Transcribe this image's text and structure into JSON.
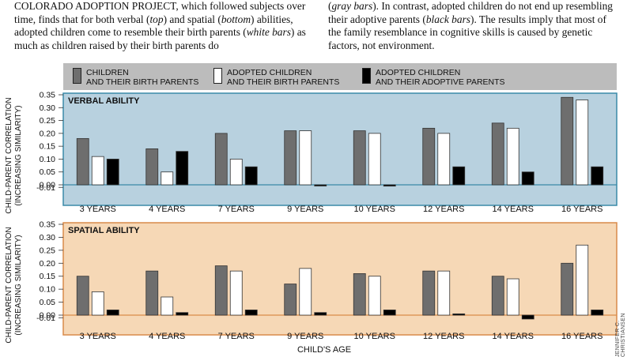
{
  "caption": {
    "left": [
      {
        "t": "COLORADO ADOPTION PROJECT, which followed subjects over time, finds that for both verbal ("
      },
      {
        "t": "top",
        "i": true
      },
      {
        "t": ") and spatial ("
      },
      {
        "t": "bottom",
        "i": true
      },
      {
        "t": ") abilities, adopted children come to resemble their birth parents ("
      },
      {
        "t": "white bars",
        "i": true
      },
      {
        "t": ") as much as children raised by their birth parents do"
      }
    ],
    "right": [
      {
        "t": "("
      },
      {
        "t": "gray bars",
        "i": true
      },
      {
        "t": "). In contrast, adopted children do not end up resembling their adoptive parents ("
      },
      {
        "t": "black bars",
        "i": true
      },
      {
        "t": "). The results imply that most of the family resemblance in cognitive skills is caused by genetic factors, not environment."
      }
    ]
  },
  "legend": [
    {
      "label": "CHILDREN\nAND THEIR BIRTH PARENTS",
      "color": "#6e6e6e"
    },
    {
      "label": "ADOPTED CHILDREN\nAND THEIR BIRTH PARENTS",
      "color": "#ffffff"
    },
    {
      "label": "ADOPTED CHILDREN\nAND THEIR ADOPTIVE PARENTS",
      "color": "#000000"
    }
  ],
  "credit": "JENNIFER C. CHRISTIANSEN",
  "xlabel": "CHILD'S AGE",
  "chart_data": [
    {
      "type": "bar",
      "title": "VERBAL ABILITY",
      "ylabel": [
        "CHILD-PARENT CORRELATION",
        "(INCREASING SIMILARITY)"
      ],
      "ylim": [
        -0.01,
        0.35
      ],
      "yticks": [
        "0.35",
        "0.30",
        "0.25",
        "0.20",
        "0.15",
        "0.10",
        "0.05",
        "0.00",
        "-0.01"
      ],
      "background": "#b8d1df",
      "border": "#3a8aa8",
      "categories": [
        "3 YEARS",
        "4 YEARS",
        "7 YEARS",
        "9 YEARS",
        "10 YEARS",
        "12 YEARS",
        "14 YEARS",
        "16 YEARS"
      ],
      "series": [
        {
          "name": "CHILDREN AND THEIR BIRTH PARENTS",
          "values": [
            0.18,
            0.14,
            0.2,
            0.21,
            0.21,
            0.22,
            0.24,
            0.34
          ]
        },
        {
          "name": "ADOPTED CHILDREN AND THEIR BIRTH PARENTS",
          "values": [
            0.11,
            0.05,
            0.1,
            0.21,
            0.2,
            0.2,
            0.22,
            0.33
          ]
        },
        {
          "name": "ADOPTED CHILDREN AND THEIR ADOPTIVE PARENTS",
          "values": [
            0.1,
            0.13,
            0.07,
            -0.002,
            -0.005,
            0.07,
            0.05,
            0.07
          ]
        }
      ]
    },
    {
      "type": "bar",
      "title": "SPATIAL ABILITY",
      "ylabel": [
        "CHILD-PARENT CORRELATION",
        "(INCREASING SIMILARITY)"
      ],
      "ylim": [
        -0.01,
        0.35
      ],
      "yticks": [
        "0.35",
        "0.30",
        "0.25",
        "0.20",
        "0.15",
        "0.10",
        "0.05",
        "0.00",
        "-0.01"
      ],
      "background": "#f6d8b6",
      "border": "#d98a4a",
      "categories": [
        "3 YEARS",
        "4 YEARS",
        "7 YEARS",
        "9 YEARS",
        "10 YEARS",
        "12 YEARS",
        "14 YEARS",
        "16 YEARS"
      ],
      "series": [
        {
          "name": "CHILDREN AND THEIR BIRTH PARENTS",
          "values": [
            0.15,
            0.17,
            0.19,
            0.12,
            0.16,
            0.17,
            0.15,
            0.2
          ]
        },
        {
          "name": "ADOPTED CHILDREN AND THEIR BIRTH PARENTS",
          "values": [
            0.09,
            0.07,
            0.17,
            0.18,
            0.15,
            0.17,
            0.14,
            0.27
          ]
        },
        {
          "name": "ADOPTED CHILDREN AND THEIR ADOPTIVE PARENTS",
          "values": [
            0.02,
            0.01,
            0.02,
            0.01,
            0.02,
            0.005,
            -0.015,
            0.02
          ]
        }
      ]
    }
  ]
}
